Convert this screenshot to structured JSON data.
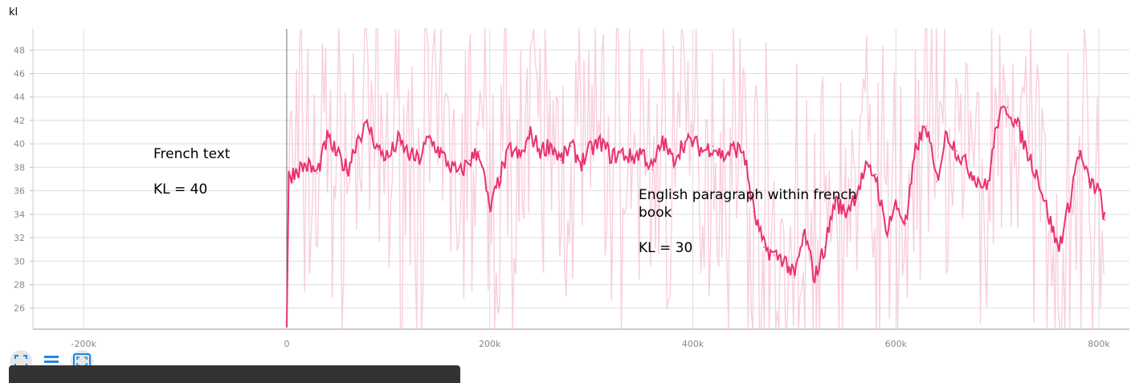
{
  "chart_data": {
    "type": "line",
    "title": "kl",
    "xlabel": "",
    "ylabel": "",
    "xlim": [
      -250000,
      830000
    ],
    "ylim": [
      24.2,
      49.8
    ],
    "x_ticks": [
      {
        "value": -200000,
        "label": "-200k"
      },
      {
        "value": 0,
        "label": "0"
      },
      {
        "value": 200000,
        "label": "200k"
      },
      {
        "value": 400000,
        "label": "400k"
      },
      {
        "value": 600000,
        "label": "600k"
      },
      {
        "value": 800000,
        "label": "800k"
      }
    ],
    "y_ticks": [
      {
        "value": 26,
        "label": "26"
      },
      {
        "value": 28,
        "label": "28"
      },
      {
        "value": 30,
        "label": "30"
      },
      {
        "value": 32,
        "label": "32"
      },
      {
        "value": 34,
        "label": "34"
      },
      {
        "value": 36,
        "label": "36"
      },
      {
        "value": 38,
        "label": "38"
      },
      {
        "value": 40,
        "label": "40"
      },
      {
        "value": 42,
        "label": "42"
      },
      {
        "value": 44,
        "label": "44"
      },
      {
        "value": 46,
        "label": "46"
      },
      {
        "value": 48,
        "label": "48"
      }
    ],
    "grid": true,
    "series": [
      {
        "role": "smoothed",
        "color": "#e8336f",
        "x": [
          0,
          2000,
          10000,
          20000,
          30000,
          40000,
          50000,
          60000,
          70000,
          80000,
          90000,
          100000,
          110000,
          120000,
          130000,
          140000,
          150000,
          160000,
          170000,
          180000,
          190000,
          200000,
          210000,
          220000,
          230000,
          240000,
          250000,
          260000,
          270000,
          280000,
          290000,
          300000,
          310000,
          320000,
          330000,
          340000,
          350000,
          360000,
          370000,
          380000,
          390000,
          400000,
          410000,
          420000,
          430000,
          440000,
          450000,
          460000,
          470000,
          480000,
          490000,
          500000,
          510000,
          520000,
          530000,
          540000,
          550000,
          560000,
          570000,
          580000,
          590000,
          600000,
          610000,
          620000,
          630000,
          640000,
          650000,
          660000,
          670000,
          680000,
          690000,
          700000,
          710000,
          720000,
          730000,
          740000,
          750000,
          760000,
          770000,
          780000,
          790000,
          800000,
          806000
        ],
        "y": [
          24.4,
          37.2,
          37.8,
          38.2,
          37.5,
          40.5,
          39.0,
          37.8,
          40.6,
          41.6,
          39.5,
          38.8,
          40.3,
          39.1,
          38.6,
          40.5,
          39.4,
          38.2,
          37.4,
          38.6,
          39.4,
          34.2,
          37.2,
          39.6,
          38.8,
          40.8,
          39.4,
          40.0,
          38.6,
          39.8,
          38.4,
          39.6,
          40.1,
          38.9,
          39.2,
          38.8,
          39.4,
          37.8,
          40.3,
          38.6,
          40.0,
          40.2,
          39.4,
          39.8,
          38.9,
          39.6,
          39.4,
          34.2,
          31.2,
          30.5,
          30.2,
          28.6,
          32.4,
          28.6,
          31.2,
          35.2,
          34.1,
          35.6,
          37.8,
          37.4,
          32.6,
          34.8,
          33.2,
          39.8,
          41.5,
          36.8,
          41.0,
          39.4,
          38.1,
          37.0,
          36.2,
          42.0,
          43.1,
          41.5,
          39.2,
          37.2,
          34.0,
          31.0,
          34.5,
          39.4,
          36.8,
          36.0,
          33.5
        ]
      }
    ],
    "raw_series": {
      "role": "raw",
      "color": "#f8c6d9",
      "note_mean_follows_smoothed": true
    },
    "annotations": [
      {
        "id": "french",
        "text": "French text\n\nKL = 40"
      },
      {
        "id": "english",
        "text": "English paragraph within french\nbook\n\nKL = 30"
      }
    ]
  },
  "toolbar": {
    "buttons": [
      {
        "id": "fit-domain",
        "icon": "expand-icon"
      },
      {
        "id": "toggle-log",
        "icon": "list-icon"
      },
      {
        "id": "reset-zoom",
        "icon": "fit-icon"
      }
    ],
    "accent": "#1e88e5"
  }
}
